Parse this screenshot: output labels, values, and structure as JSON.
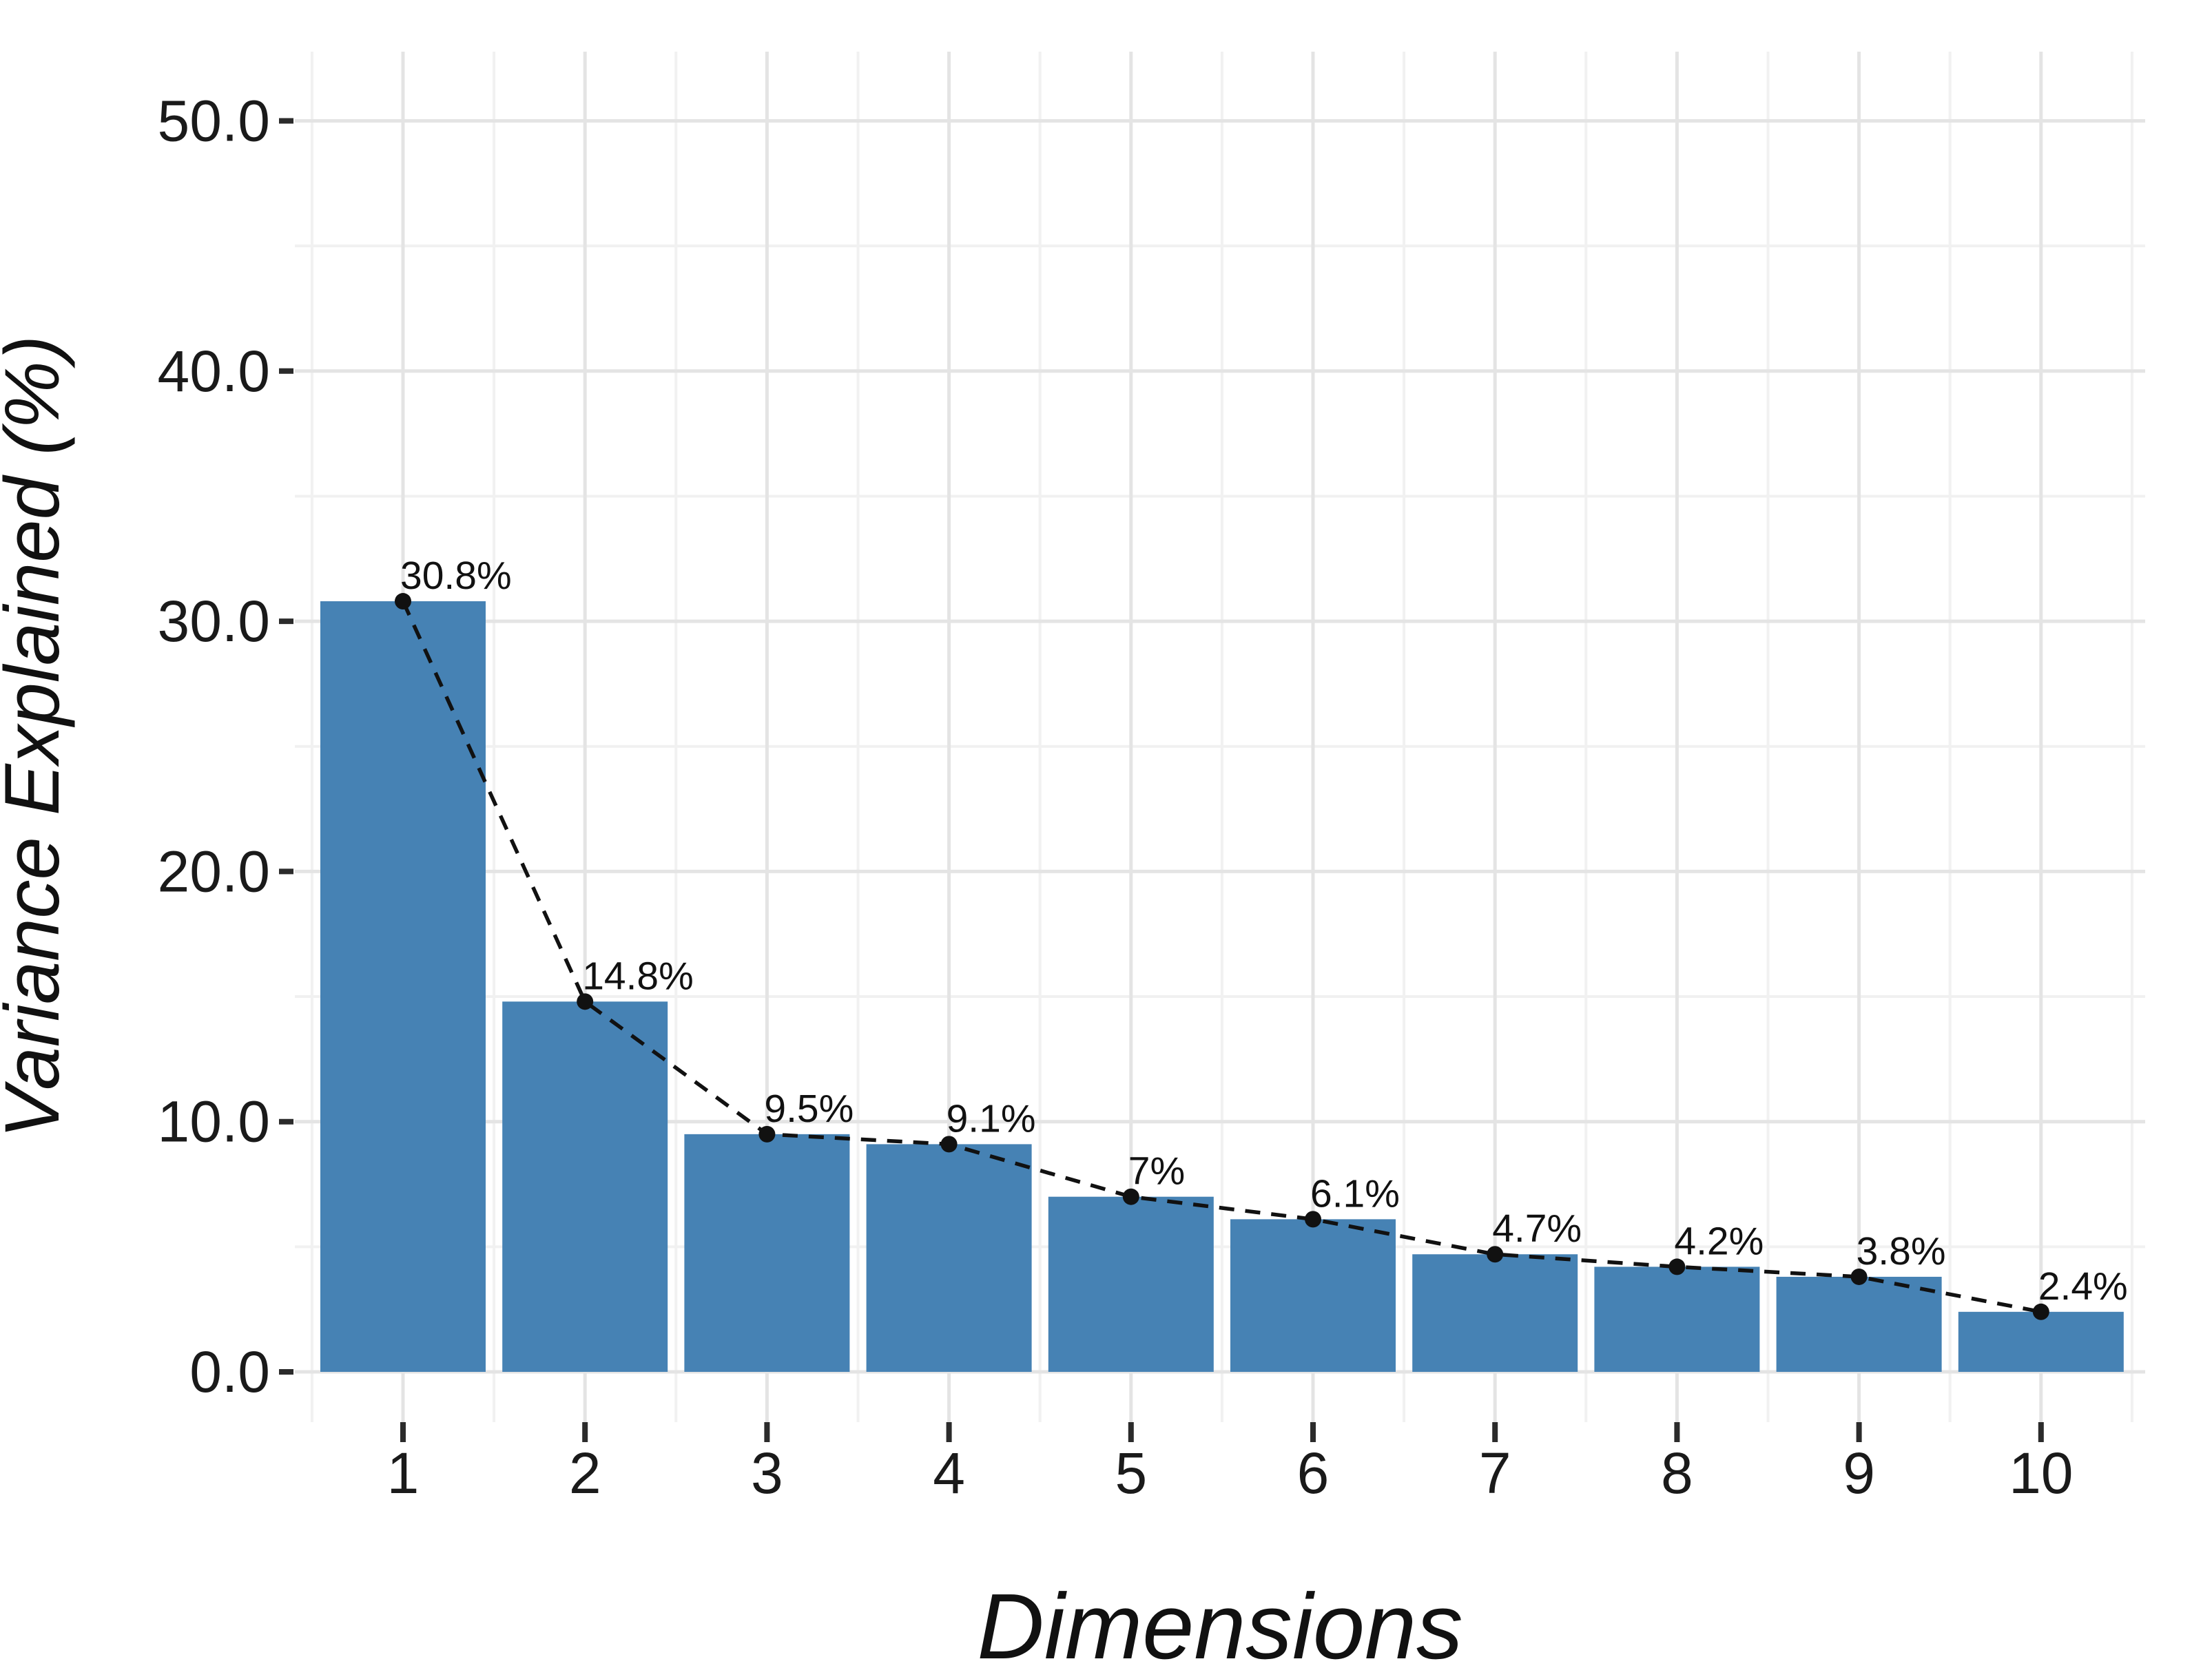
{
  "figure": {
    "background": "#ffffff",
    "description": "Scree plot: bar chart of variance explained per dimension with dashed line and point markers overlay"
  },
  "chart_data": {
    "type": "bar",
    "line_overlay": true,
    "categories": [
      "1",
      "2",
      "3",
      "4",
      "5",
      "6",
      "7",
      "8",
      "9",
      "10"
    ],
    "values": [
      30.8,
      14.8,
      9.5,
      9.1,
      7,
      6.1,
      4.7,
      4.2,
      3.8,
      2.4
    ],
    "data_labels": [
      "30.8%",
      "14.8%",
      "9.5%",
      "9.1%",
      "7%",
      "6.1%",
      "4.7%",
      "4.2%",
      "3.8%",
      "2.4%"
    ],
    "title": "",
    "xlabel": "Dimensions",
    "ylabel": "Variance Explained (%)",
    "ylim": [
      0,
      50
    ],
    "y_ticks": [
      0,
      10,
      20,
      30,
      40,
      50
    ],
    "y_tick_labels": [
      "0.0",
      "10.0",
      "20.0",
      "30.0",
      "40.0",
      "50.0"
    ],
    "y_minor_ticks": [
      5,
      15,
      25,
      35,
      45
    ],
    "grid": "horizontal and vertical, major + minor, light gray, white panel",
    "legend": "none",
    "colors": {
      "bar": "#4682B4",
      "line": "#111111",
      "marker": "#111111",
      "data_label": "#111111",
      "grid_major": "#e4e4e4",
      "grid_minor": "#f1f1f1",
      "tick_mark": "#2b2b2b",
      "tick_text": "#1a1a1a"
    }
  }
}
